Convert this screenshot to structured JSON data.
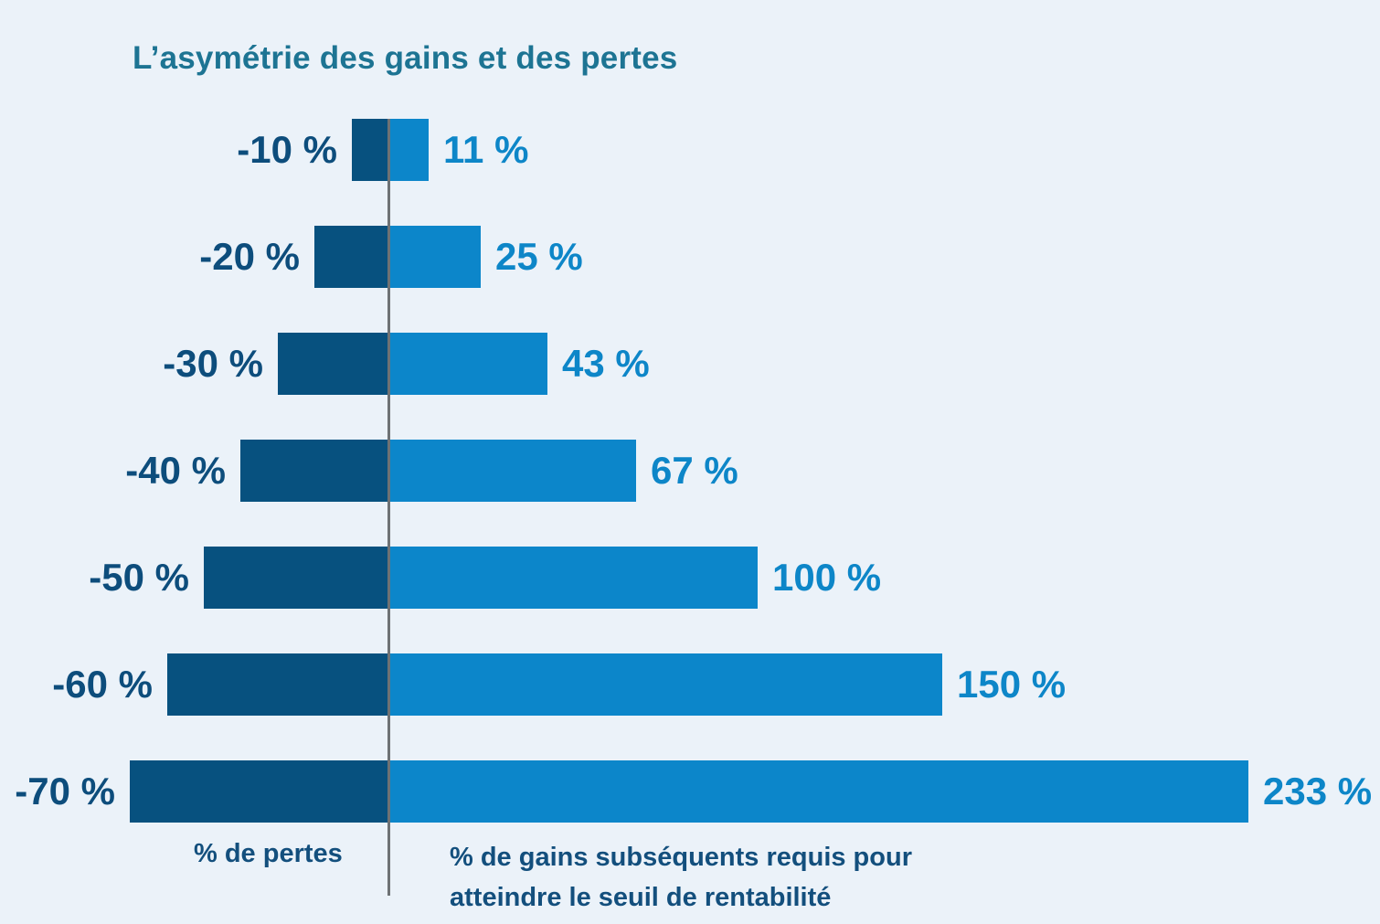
{
  "chart_data": {
    "type": "bar",
    "orientation": "horizontal-diverging",
    "title": "L’asymétrie des gains et des pertes",
    "categories": [
      "-10 %",
      "-20 %",
      "-30 %",
      "-40 %",
      "-50 %",
      "-60 %",
      "-70 %"
    ],
    "series": [
      {
        "name": "% de pertes",
        "values": [
          -10,
          -20,
          -30,
          -40,
          -50,
          -60,
          -70
        ]
      },
      {
        "name": "% de gains subséquents requis",
        "values": [
          11,
          25,
          43,
          67,
          100,
          150,
          233
        ]
      }
    ],
    "rows": [
      {
        "loss": -10,
        "gain": 11,
        "loss_label": "-10 %",
        "gain_label": "11 %"
      },
      {
        "loss": -20,
        "gain": 25,
        "loss_label": "-20 %",
        "gain_label": "25 %"
      },
      {
        "loss": -30,
        "gain": 43,
        "loss_label": "-30 %",
        "gain_label": "43 %"
      },
      {
        "loss": -40,
        "gain": 67,
        "loss_label": "-40 %",
        "gain_label": "67 %"
      },
      {
        "loss": -50,
        "gain": 100,
        "loss_label": "-50 %",
        "gain_label": "100 %"
      },
      {
        "loss": -60,
        "gain": 150,
        "loss_label": "-60 %",
        "gain_label": "150 %"
      },
      {
        "loss": -70,
        "gain": 233,
        "loss_label": "-70 %",
        "gain_label": "233 %"
      }
    ],
    "axis_labels": {
      "left": "% de pertes",
      "right_line1": "% de gains subséquents requis pour",
      "right_line2": "atteindre le seuil de rentabilité"
    },
    "xlim": [
      -70,
      233
    ],
    "grid": false,
    "legend": "none"
  },
  "colors": {
    "background": "#EBF2F9",
    "loss_bar": "#07517F",
    "gain_bar": "#0C86CA",
    "loss_label": "#0D4D7C",
    "gain_label": "#0D86C8",
    "title": "#1D7493",
    "footer_text": "#134F7D",
    "axis_line": "#6E7275"
  }
}
